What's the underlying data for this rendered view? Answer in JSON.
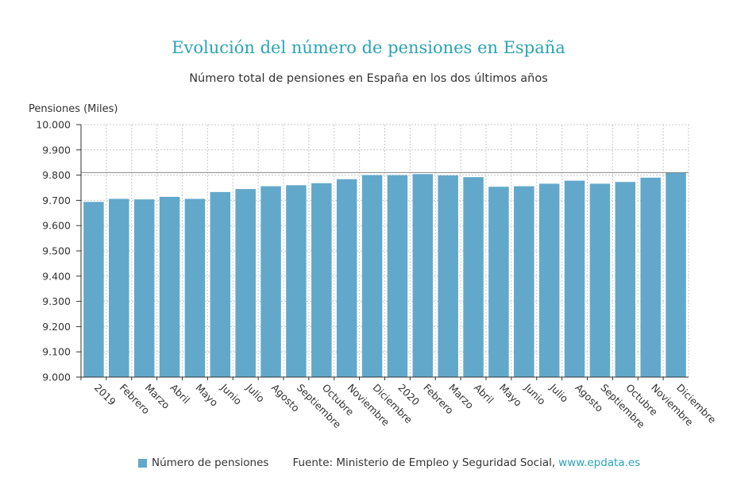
{
  "colors": {
    "bar": "#62a8cb",
    "title": "#2ba4b5",
    "link": "#2ba4b5",
    "grid": "#c8c8c8",
    "refline": "#888888",
    "axis": "#333333"
  },
  "footer": {
    "source": "Fuente: Ministerio de Empleo y Seguridad Social,",
    "link": "www.epdata.es"
  },
  "chart_data": {
    "type": "bar",
    "title": "Evolución del número de pensiones en España",
    "subtitle": "Número total de pensiones en España en los dos últimos años",
    "ylabel": "Pensiones (Miles)",
    "xlabel": "",
    "ylim": [
      9000,
      10000
    ],
    "yticks": [
      "9.000",
      "9.100",
      "9.200",
      "9.300",
      "9.400",
      "9.500",
      "9.600",
      "9.700",
      "9.800",
      "9.900",
      "10.000"
    ],
    "grid": true,
    "legend_position": "bottom",
    "reference_line": 9810,
    "categories": [
      "2019",
      "Febrero",
      "Marzo",
      "Abril",
      "Mayo",
      "Junio",
      "Julio",
      "Agosto",
      "Septiembre",
      "Octubre",
      "Noviembre",
      "Diciembre",
      "2020",
      "Febrero",
      "Marzo",
      "Abril",
      "Mayo",
      "Junio",
      "Julio",
      "Agosto",
      "Septiembre",
      "Octubre",
      "Noviembre",
      "Diciembre"
    ],
    "series": [
      {
        "name": "Número de pensiones",
        "values": [
          9694,
          9706,
          9704,
          9714,
          9706,
          9733,
          9745,
          9756,
          9760,
          9768,
          9784,
          9800,
          9800,
          9804,
          9799,
          9792,
          9754,
          9756,
          9766,
          9778,
          9766,
          9773,
          9790,
          9810
        ]
      }
    ]
  }
}
